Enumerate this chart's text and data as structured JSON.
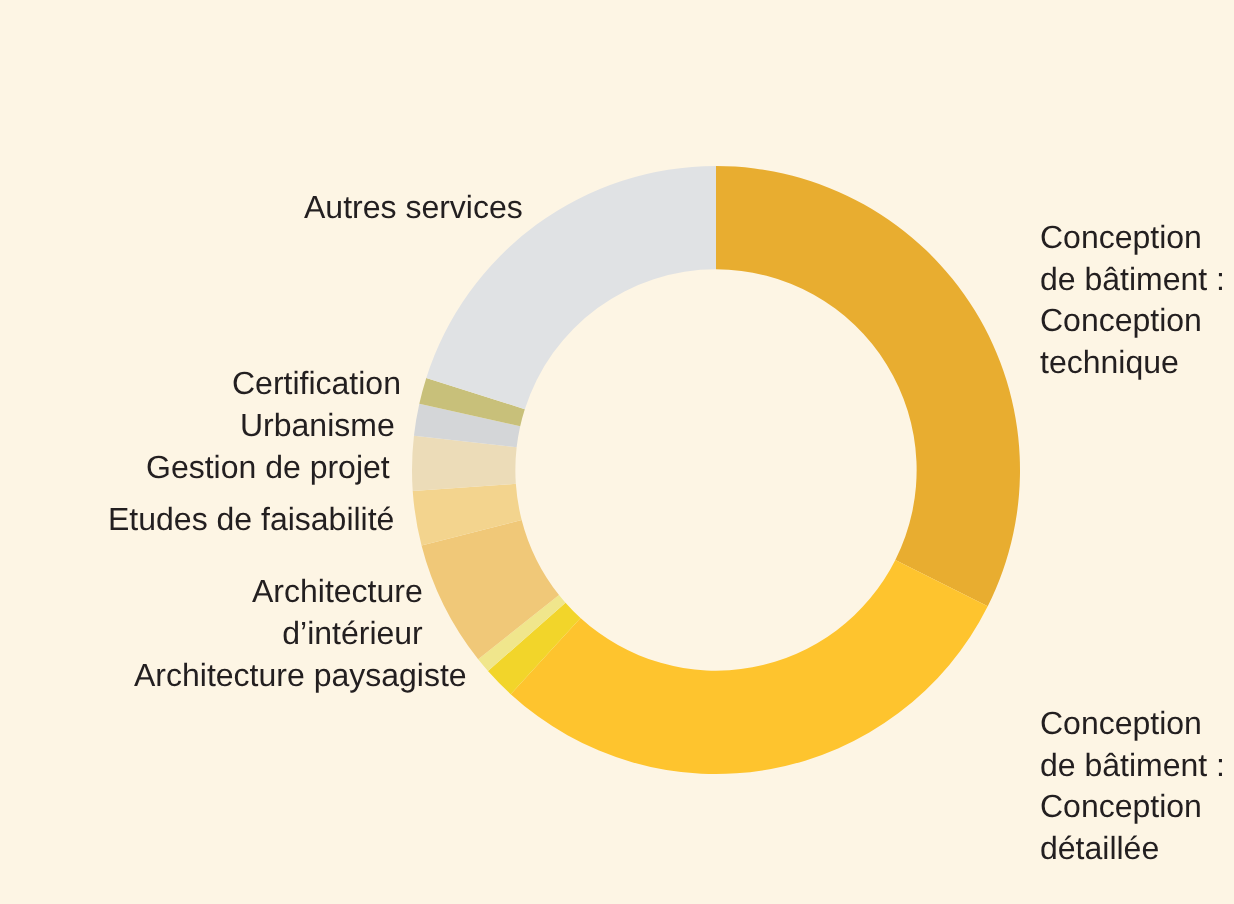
{
  "chart_data": {
    "type": "donut",
    "categories": [
      "Conception\nde bâtiment :\nConception\ntechnique",
      "Conception\nde bâtiment :\nConception\ndétaillée",
      null,
      "Architecture paysagiste",
      "Architecture\nd’intérieur",
      "Etudes de faisabilité",
      "Gestion de projet",
      "Urbanisme",
      "Certification",
      "Autres services"
    ],
    "values": [
      32.4,
      29.4,
      1.7,
      0.8,
      6.7,
      2.9,
      2.9,
      1.7,
      1.4,
      20.1
    ],
    "colors": [
      "#e8ad30",
      "#fec42e",
      "#f2d52a",
      "#f0e68c",
      "#f0c878",
      "#f3d48e",
      "#ecdcb8",
      "#d4d6d8",
      "#c8c07a",
      "#e0e2e4"
    ],
    "legend": false
  }
}
